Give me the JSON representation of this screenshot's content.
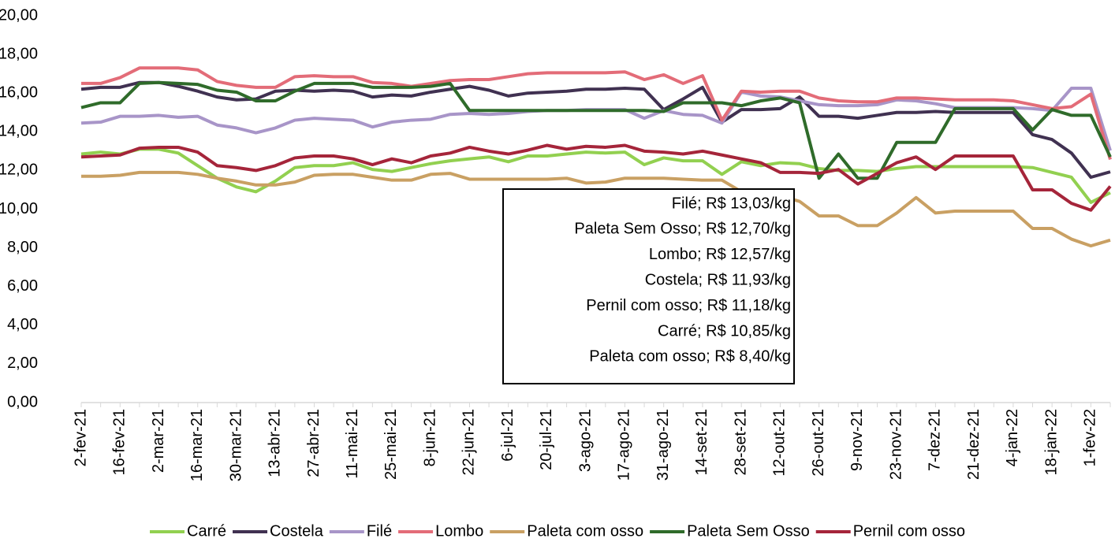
{
  "chart_data": {
    "type": "line",
    "categories": [
      "2-fev-21",
      null,
      "16-fev-21",
      null,
      "2-mar-21",
      null,
      "16-mar-21",
      null,
      "30-mar-21",
      null,
      "13-abr-21",
      null,
      "27-abr-21",
      null,
      "11-mai-21",
      null,
      "25-mai-21",
      null,
      "8-jun-21",
      null,
      "22-jun-21",
      null,
      "6-jul-21",
      null,
      "20-jul-21",
      null,
      "3-ago-21",
      null,
      "17-ago-21",
      null,
      "31-ago-21",
      null,
      "14-set-21",
      null,
      "28-set-21",
      null,
      "12-out-21",
      null,
      "26-out-21",
      null,
      "9-nov-21",
      null,
      "23-nov-21",
      null,
      "7-dez-21",
      null,
      "21-dez-21",
      null,
      "4-jan-22",
      null,
      "18-jan-22",
      null,
      "1-fev-22",
      null
    ],
    "series": [
      {
        "name": "Carré",
        "color": "#92d050",
        "values": [
          12.85,
          12.95,
          12.85,
          13.1,
          13.1,
          12.9,
          12.25,
          11.6,
          11.15,
          10.9,
          11.45,
          12.15,
          12.25,
          12.25,
          12.4,
          12.05,
          11.95,
          12.15,
          12.35,
          12.5,
          12.6,
          12.7,
          12.45,
          12.75,
          12.75,
          12.85,
          12.95,
          12.9,
          12.95,
          12.3,
          12.65,
          12.5,
          12.5,
          11.8,
          12.45,
          12.25,
          12.4,
          12.35,
          12.1,
          12.0,
          12.0,
          11.95,
          12.1,
          12.2,
          12.2,
          12.2,
          12.2,
          12.2,
          12.2,
          12.15,
          11.9,
          11.65,
          10.35,
          10.85
        ]
      },
      {
        "name": "Costela",
        "color": "#403151",
        "values": [
          16.2,
          16.3,
          16.3,
          16.55,
          16.55,
          16.35,
          16.1,
          15.8,
          15.65,
          15.7,
          16.1,
          16.15,
          16.1,
          16.15,
          16.1,
          15.8,
          15.9,
          15.85,
          16.05,
          16.2,
          16.35,
          16.15,
          15.85,
          16.0,
          16.05,
          16.1,
          16.2,
          16.2,
          16.25,
          16.2,
          15.15,
          15.7,
          16.3,
          14.5,
          15.15,
          15.15,
          15.2,
          15.8,
          14.8,
          14.8,
          14.7,
          14.85,
          15.0,
          15.0,
          15.05,
          15.0,
          15.0,
          15.0,
          15.0,
          13.85,
          13.6,
          12.9,
          11.65,
          11.93
        ]
      },
      {
        "name": "Filé",
        "color": "#a895c8",
        "values": [
          14.45,
          14.5,
          14.8,
          14.8,
          14.85,
          14.75,
          14.8,
          14.35,
          14.2,
          13.95,
          14.2,
          14.6,
          14.7,
          14.65,
          14.6,
          14.25,
          14.5,
          14.6,
          14.65,
          14.9,
          14.95,
          14.9,
          14.95,
          15.05,
          15.1,
          15.1,
          15.15,
          15.15,
          15.15,
          14.7,
          15.1,
          14.9,
          14.85,
          14.45,
          16.05,
          15.85,
          15.8,
          15.6,
          15.4,
          15.35,
          15.35,
          15.4,
          15.65,
          15.6,
          15.45,
          15.25,
          15.25,
          15.25,
          15.25,
          15.2,
          15.1,
          16.25,
          16.25,
          13.03
        ]
      },
      {
        "name": "Lombo",
        "color": "#e36c78",
        "values": [
          16.5,
          16.5,
          16.8,
          17.3,
          17.3,
          17.3,
          17.2,
          16.6,
          16.4,
          16.3,
          16.3,
          16.85,
          16.9,
          16.85,
          16.85,
          16.55,
          16.5,
          16.35,
          16.5,
          16.65,
          16.7,
          16.7,
          16.85,
          17.0,
          17.05,
          17.05,
          17.05,
          17.05,
          17.1,
          16.7,
          16.95,
          16.5,
          16.9,
          14.6,
          16.1,
          16.05,
          16.1,
          16.1,
          15.75,
          15.6,
          15.55,
          15.55,
          15.75,
          15.75,
          15.7,
          15.65,
          15.65,
          15.65,
          15.6,
          15.4,
          15.2,
          15.3,
          15.95,
          12.57
        ]
      },
      {
        "name": "Paleta com osso",
        "color": "#c9a063",
        "values": [
          11.7,
          11.7,
          11.75,
          11.9,
          11.9,
          11.9,
          11.8,
          11.6,
          11.45,
          11.25,
          11.25,
          11.4,
          11.75,
          11.8,
          11.8,
          11.65,
          11.5,
          11.5,
          11.8,
          11.85,
          11.55,
          11.55,
          11.55,
          11.55,
          11.55,
          11.6,
          11.35,
          11.4,
          11.6,
          11.6,
          11.6,
          11.55,
          11.5,
          11.5,
          10.9,
          10.9,
          10.7,
          10.4,
          9.65,
          9.65,
          9.15,
          9.15,
          9.8,
          10.6,
          9.8,
          9.9,
          9.9,
          9.9,
          9.9,
          9.0,
          9.0,
          8.45,
          8.1,
          8.4
        ]
      },
      {
        "name": "Paleta Sem Osso",
        "color": "#2f6b2a",
        "values": [
          15.25,
          15.5,
          15.5,
          16.5,
          16.55,
          16.5,
          16.45,
          16.15,
          16.05,
          15.6,
          15.6,
          16.1,
          16.5,
          16.5,
          16.5,
          16.3,
          16.3,
          16.3,
          16.35,
          16.5,
          15.1,
          15.1,
          15.1,
          15.1,
          15.1,
          15.1,
          15.1,
          15.1,
          15.1,
          15.1,
          15.05,
          15.5,
          15.5,
          15.5,
          15.35,
          15.6,
          15.75,
          15.5,
          11.6,
          12.85,
          11.6,
          11.6,
          13.45,
          13.45,
          13.45,
          15.2,
          15.2,
          15.2,
          15.2,
          14.1,
          15.15,
          14.85,
          14.85,
          12.7
        ]
      },
      {
        "name": "Pernil com osso",
        "color": "#a5253a",
        "values": [
          12.7,
          12.75,
          12.8,
          13.15,
          13.2,
          13.2,
          12.95,
          12.25,
          12.15,
          12.0,
          12.25,
          12.65,
          12.75,
          12.75,
          12.6,
          12.3,
          12.6,
          12.4,
          12.75,
          12.9,
          13.2,
          13.0,
          12.85,
          13.05,
          13.3,
          13.1,
          13.25,
          13.2,
          13.3,
          13.0,
          12.95,
          12.85,
          13.0,
          12.8,
          12.6,
          12.4,
          11.9,
          11.9,
          11.85,
          12.05,
          11.3,
          11.85,
          12.4,
          12.7,
          12.05,
          12.75,
          12.75,
          12.75,
          12.75,
          11.0,
          11.0,
          10.3,
          9.95,
          11.18
        ]
      }
    ],
    "ylim": [
      0,
      20
    ],
    "yticks": [
      {
        "value": 0,
        "label": "0,00"
      },
      {
        "value": 2,
        "label": "2,00"
      },
      {
        "value": 4,
        "label": "4,00"
      },
      {
        "value": 6,
        "label": "6,00"
      },
      {
        "value": 8,
        "label": "8,00"
      },
      {
        "value": 10,
        "label": "10,00"
      },
      {
        "value": 12,
        "label": "12,00"
      },
      {
        "value": 14,
        "label": "14,00"
      },
      {
        "value": 16,
        "label": "16,00"
      },
      {
        "value": 18,
        "label": "18,00"
      },
      {
        "value": 20,
        "label": "20,00"
      }
    ],
    "grid": false,
    "legend": "bottom",
    "annotations": [
      "Filé; R$ 13,03/kg",
      "Paleta Sem Osso; R$ 12,70/kg",
      "Lombo; R$ 12,57/kg",
      "Costela; R$ 11,93/kg",
      "Pernil com osso; R$ 11,18/kg",
      "Carré; R$ 10,85/kg",
      "Paleta com osso; R$ 8,40/kg"
    ]
  }
}
